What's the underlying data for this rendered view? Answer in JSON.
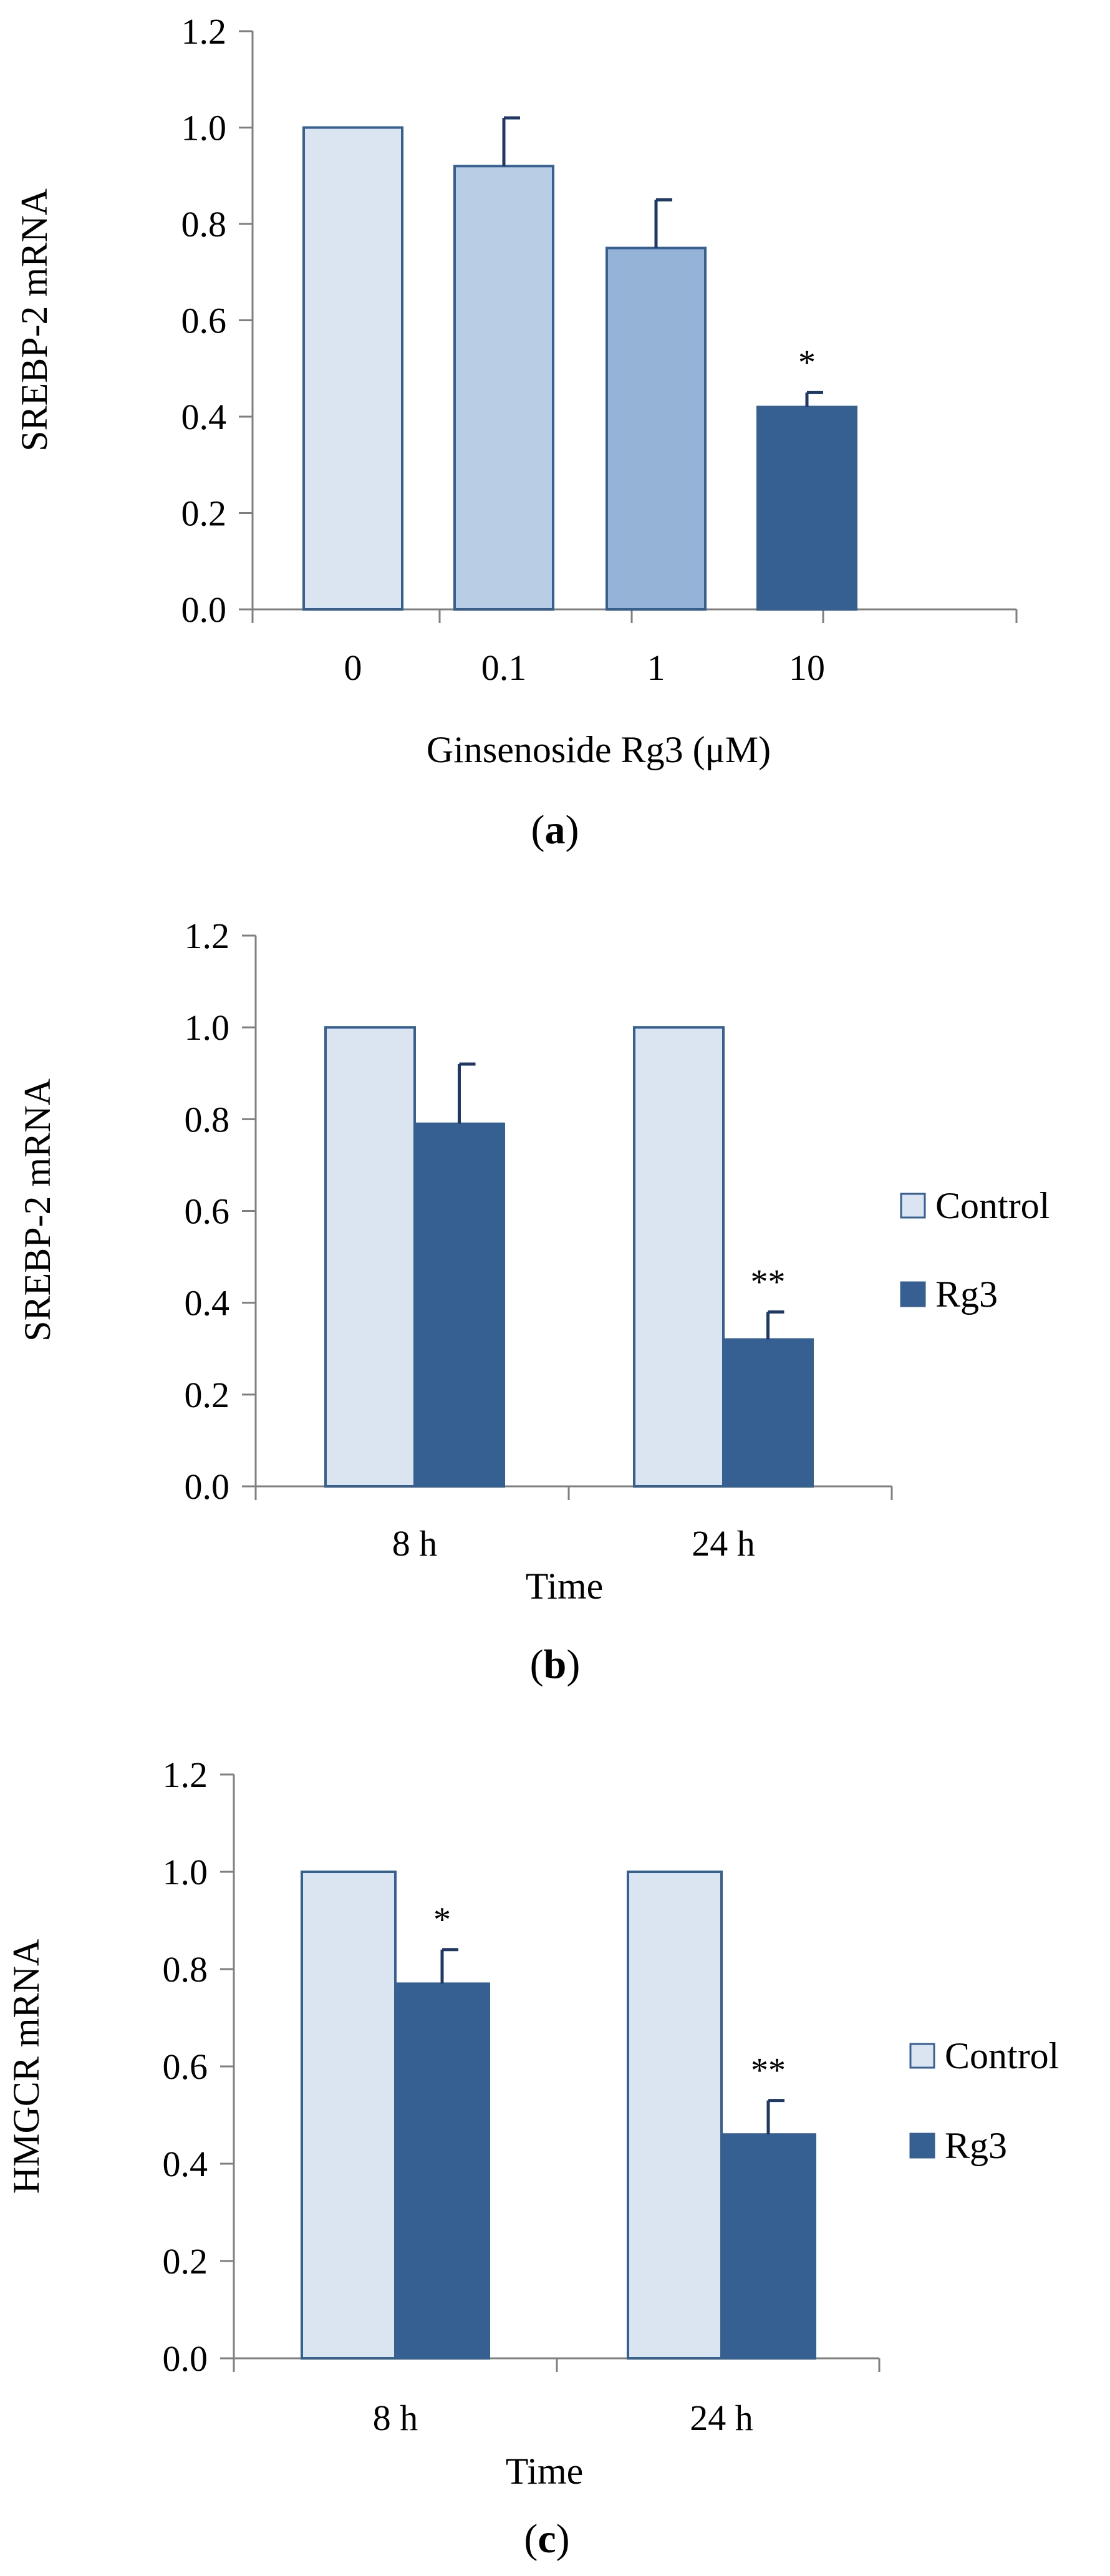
{
  "colors": {
    "control": "#dbe5f1",
    "dose_0": "#dbe5f1",
    "dose_01": "#b9cde5",
    "dose_1": "#95b3d7",
    "rg3": "#376092",
    "bar_edge": "#376092",
    "axis": "#7f7f7f",
    "error_bar": "#1f3864",
    "text": "#000000"
  },
  "chart_data": [
    {
      "id": "a",
      "type": "bar",
      "panel_label": "a",
      "ylabel": "SREBP-2 mRNA",
      "xlabel": "Ginsenoside Rg3 (μM)",
      "ylim": [
        0,
        1.2
      ],
      "yticks": [
        "0.0",
        "0.2",
        "0.4",
        "0.6",
        "0.8",
        "1.0",
        "1.2"
      ],
      "categories": [
        "0",
        "0.1",
        "1",
        "10"
      ],
      "values": [
        1.0,
        0.92,
        0.75,
        0.42
      ],
      "errors": [
        0.0,
        0.1,
        0.1,
        0.03
      ],
      "significance": [
        "",
        "",
        "",
        "*"
      ],
      "bar_colors": [
        "#dbe5f1",
        "#b9cde5",
        "#95b3d7",
        "#376092"
      ]
    },
    {
      "id": "b",
      "type": "bar",
      "panel_label": "b",
      "ylabel": "SREBP-2 mRNA",
      "xlabel": "Time",
      "ylim": [
        0,
        1.2
      ],
      "yticks": [
        "0.0",
        "0.2",
        "0.4",
        "0.6",
        "0.8",
        "1.0",
        "1.2"
      ],
      "categories": [
        "8 h",
        "24 h"
      ],
      "series": [
        {
          "name": "Control",
          "values": [
            1.0,
            1.0
          ],
          "errors": [
            0,
            0
          ],
          "significance": [
            "",
            ""
          ],
          "color": "#dbe5f1"
        },
        {
          "name": "Rg3",
          "values": [
            0.79,
            0.32
          ],
          "errors": [
            0.13,
            0.06
          ],
          "significance": [
            "",
            "**"
          ],
          "color": "#376092"
        }
      ],
      "legend": [
        "Control",
        "Rg3"
      ],
      "legend_position": "right"
    },
    {
      "id": "c",
      "type": "bar",
      "panel_label": "c",
      "ylabel": "HMGCR mRNA",
      "xlabel": "Time",
      "ylim": [
        0,
        1.2
      ],
      "yticks": [
        "0.0",
        "0.2",
        "0.4",
        "0.6",
        "0.8",
        "1.0",
        "1.2"
      ],
      "categories": [
        "8 h",
        "24 h"
      ],
      "series": [
        {
          "name": "Control",
          "values": [
            1.0,
            1.0
          ],
          "errors": [
            0,
            0
          ],
          "significance": [
            "",
            ""
          ],
          "color": "#dbe5f1"
        },
        {
          "name": "Rg3",
          "values": [
            0.77,
            0.46
          ],
          "errors": [
            0.07,
            0.07
          ],
          "significance": [
            "*",
            "**"
          ],
          "color": "#376092"
        }
      ],
      "legend": [
        "Control",
        "Rg3"
      ],
      "legend_position": "right"
    }
  ]
}
